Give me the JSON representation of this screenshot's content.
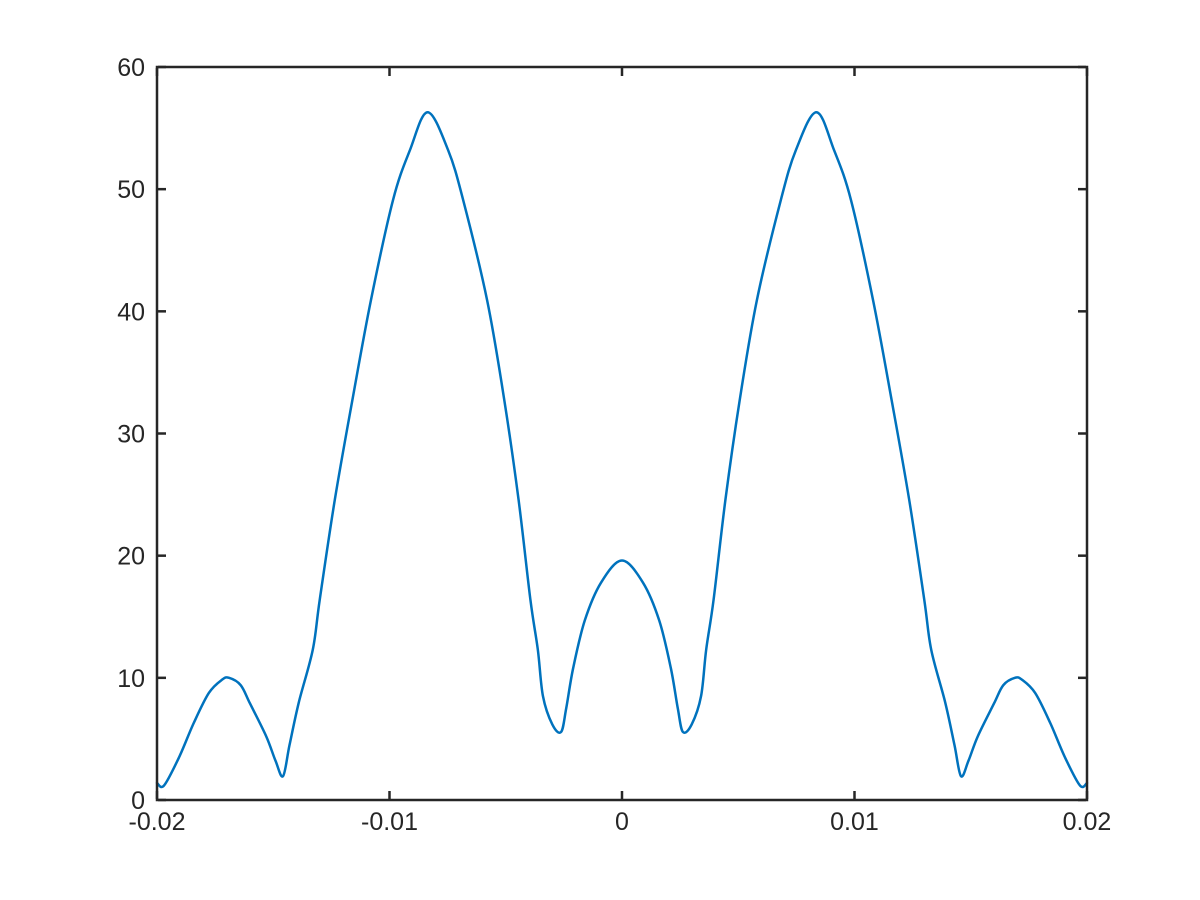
{
  "figure": {
    "background": "#ffffff",
    "axes_color": "#262626",
    "tick_label_color": "#262626"
  },
  "chart_data": {
    "type": "line",
    "title": "",
    "xlabel": "",
    "ylabel": "",
    "xlim": [
      -0.02,
      0.02
    ],
    "ylim": [
      0,
      60
    ],
    "grid": false,
    "box": true,
    "legend": null,
    "x_ticks": {
      "values": [
        -0.02,
        -0.01,
        0,
        0.01,
        0.02
      ],
      "labels": [
        "-0.02",
        "-0.01",
        "0",
        "0.01",
        "0.02"
      ]
    },
    "y_ticks": {
      "values": [
        0,
        10,
        20,
        30,
        40,
        50,
        60
      ],
      "labels": [
        "0",
        "10",
        "20",
        "30",
        "40",
        "50",
        "60"
      ]
    },
    "series": [
      {
        "name": "line1",
        "color": "#0072BD",
        "line_width": 2.5,
        "points": [
          [
            -0.02,
            1.4
          ],
          [
            -0.0197,
            1.18
          ],
          [
            -0.01905,
            3.5
          ],
          [
            -0.01842,
            6.3
          ],
          [
            -0.01777,
            8.76
          ],
          [
            -0.0172,
            9.85
          ],
          [
            -0.0169,
            10.0
          ],
          [
            -0.0164,
            9.4
          ],
          [
            -0.016,
            7.9
          ],
          [
            -0.0153,
            5.2
          ],
          [
            -0.0149,
            3.2
          ],
          [
            -0.01458,
            1.95
          ],
          [
            -0.0143,
            4.5
          ],
          [
            -0.0139,
            8.0
          ],
          [
            -0.0133,
            12.3
          ],
          [
            -0.013,
            16.4
          ],
          [
            -0.01235,
            24.6
          ],
          [
            -0.0116,
            32.7
          ],
          [
            -0.0108,
            40.9
          ],
          [
            -0.00985,
            49.1
          ],
          [
            -0.00912,
            53.2
          ],
          [
            -0.00836,
            56.3
          ],
          [
            -0.00748,
            53.2
          ],
          [
            -0.00683,
            49.1
          ],
          [
            -0.0058,
            40.9
          ],
          [
            -0.00506,
            32.7
          ],
          [
            -0.00445,
            24.6
          ],
          [
            -0.00394,
            16.4
          ],
          [
            -0.00362,
            12.3
          ],
          [
            -0.0034,
            8.5
          ],
          [
            -0.003,
            6.2
          ],
          [
            -0.00262,
            5.57
          ],
          [
            -0.0024,
            7.5
          ],
          [
            -0.0021,
            10.8
          ],
          [
            -0.0016,
            14.7
          ],
          [
            -0.0009,
            17.8
          ],
          [
            0.0,
            19.6
          ],
          [
            0.0009,
            17.8
          ],
          [
            0.0016,
            14.7
          ],
          [
            0.0021,
            10.8
          ],
          [
            0.0024,
            7.5
          ],
          [
            0.00262,
            5.57
          ],
          [
            0.003,
            6.2
          ],
          [
            0.0034,
            8.5
          ],
          [
            0.00362,
            12.3
          ],
          [
            0.00394,
            16.4
          ],
          [
            0.00445,
            24.6
          ],
          [
            0.00506,
            32.7
          ],
          [
            0.0058,
            40.9
          ],
          [
            0.00683,
            49.1
          ],
          [
            0.00748,
            53.2
          ],
          [
            0.00836,
            56.3
          ],
          [
            0.00912,
            53.2
          ],
          [
            0.00985,
            49.1
          ],
          [
            0.0108,
            40.9
          ],
          [
            0.0116,
            32.7
          ],
          [
            0.01235,
            24.6
          ],
          [
            0.013,
            16.4
          ],
          [
            0.0133,
            12.3
          ],
          [
            0.0139,
            8.0
          ],
          [
            0.0143,
            4.5
          ],
          [
            0.01458,
            1.95
          ],
          [
            0.0149,
            3.2
          ],
          [
            0.0153,
            5.2
          ],
          [
            0.016,
            7.9
          ],
          [
            0.0164,
            9.4
          ],
          [
            0.0169,
            10.0
          ],
          [
            0.0172,
            9.85
          ],
          [
            0.01777,
            8.76
          ],
          [
            0.01842,
            6.3
          ],
          [
            0.01905,
            3.5
          ],
          [
            0.0197,
            1.18
          ],
          [
            0.02,
            1.4
          ]
        ]
      }
    ]
  }
}
